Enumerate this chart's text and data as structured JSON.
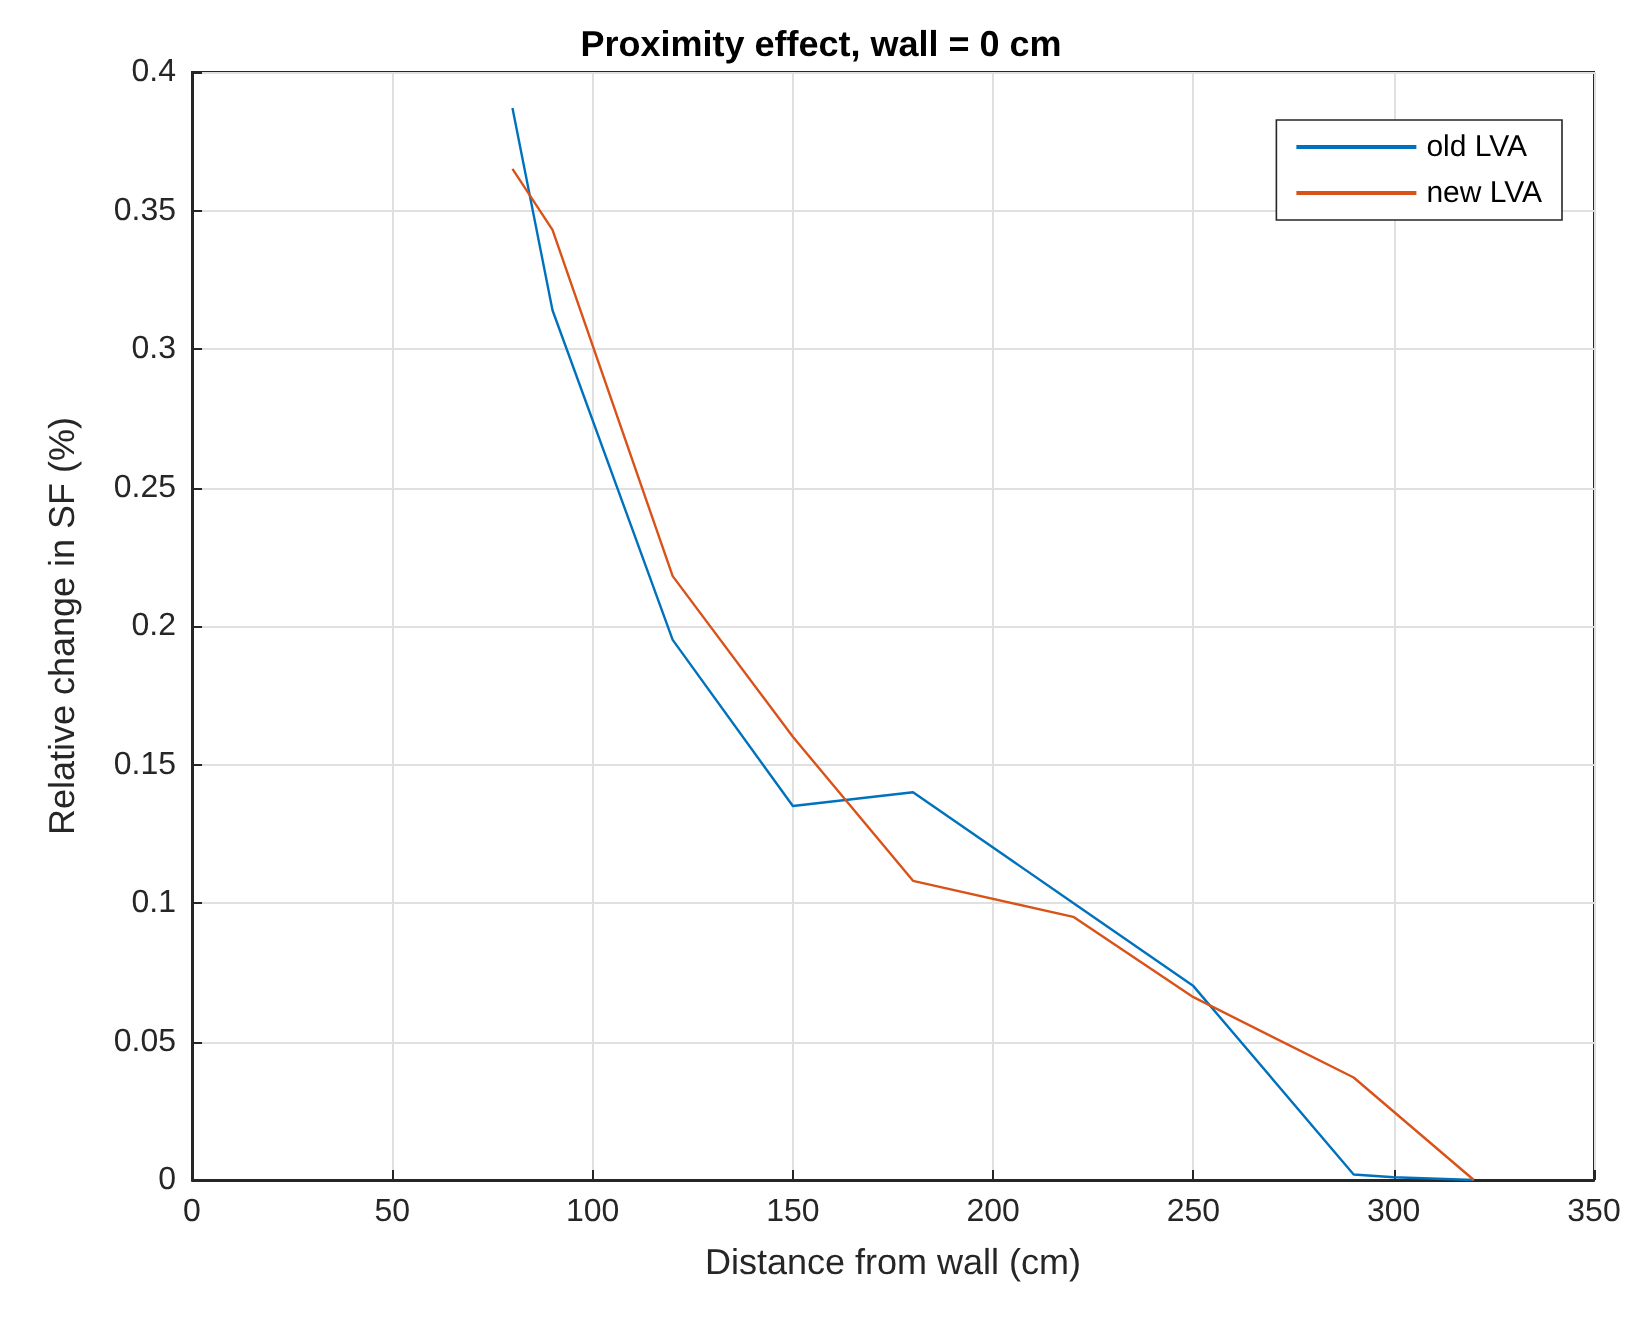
{
  "chart_data": {
    "type": "line",
    "title": "Proximity effect, wall = 0 cm",
    "xlabel": "Distance from wall (cm)",
    "ylabel": "Relative change in SF (%)",
    "xlim": [
      0,
      350
    ],
    "xticks": [
      0,
      50,
      100,
      150,
      200,
      250,
      300,
      350
    ],
    "ylim": [
      0,
      0.4
    ],
    "yticks": [
      0,
      0.05,
      0.1,
      0.15,
      0.2,
      0.25,
      0.3,
      0.35,
      0.4
    ],
    "grid": true,
    "legend": "top right",
    "marker": "none",
    "line_style": "solid",
    "series": [
      {
        "name": "old LVA",
        "color": "#0072bd",
        "x": [
          80,
          90,
          120,
          150,
          180,
          220,
          250,
          290,
          300,
          320
        ],
        "values": [
          0.387,
          0.314,
          0.195,
          0.135,
          0.14,
          0.1,
          0.07,
          0.002,
          0.001,
          0
        ]
      },
      {
        "name": "new LVA",
        "color": "#d95319",
        "x": [
          80,
          90,
          120,
          150,
          180,
          220,
          250,
          290,
          320
        ],
        "values": [
          0.365,
          0.343,
          0.218,
          0.16,
          0.108,
          0.095,
          0.066,
          0.037,
          0
        ]
      }
    ]
  }
}
